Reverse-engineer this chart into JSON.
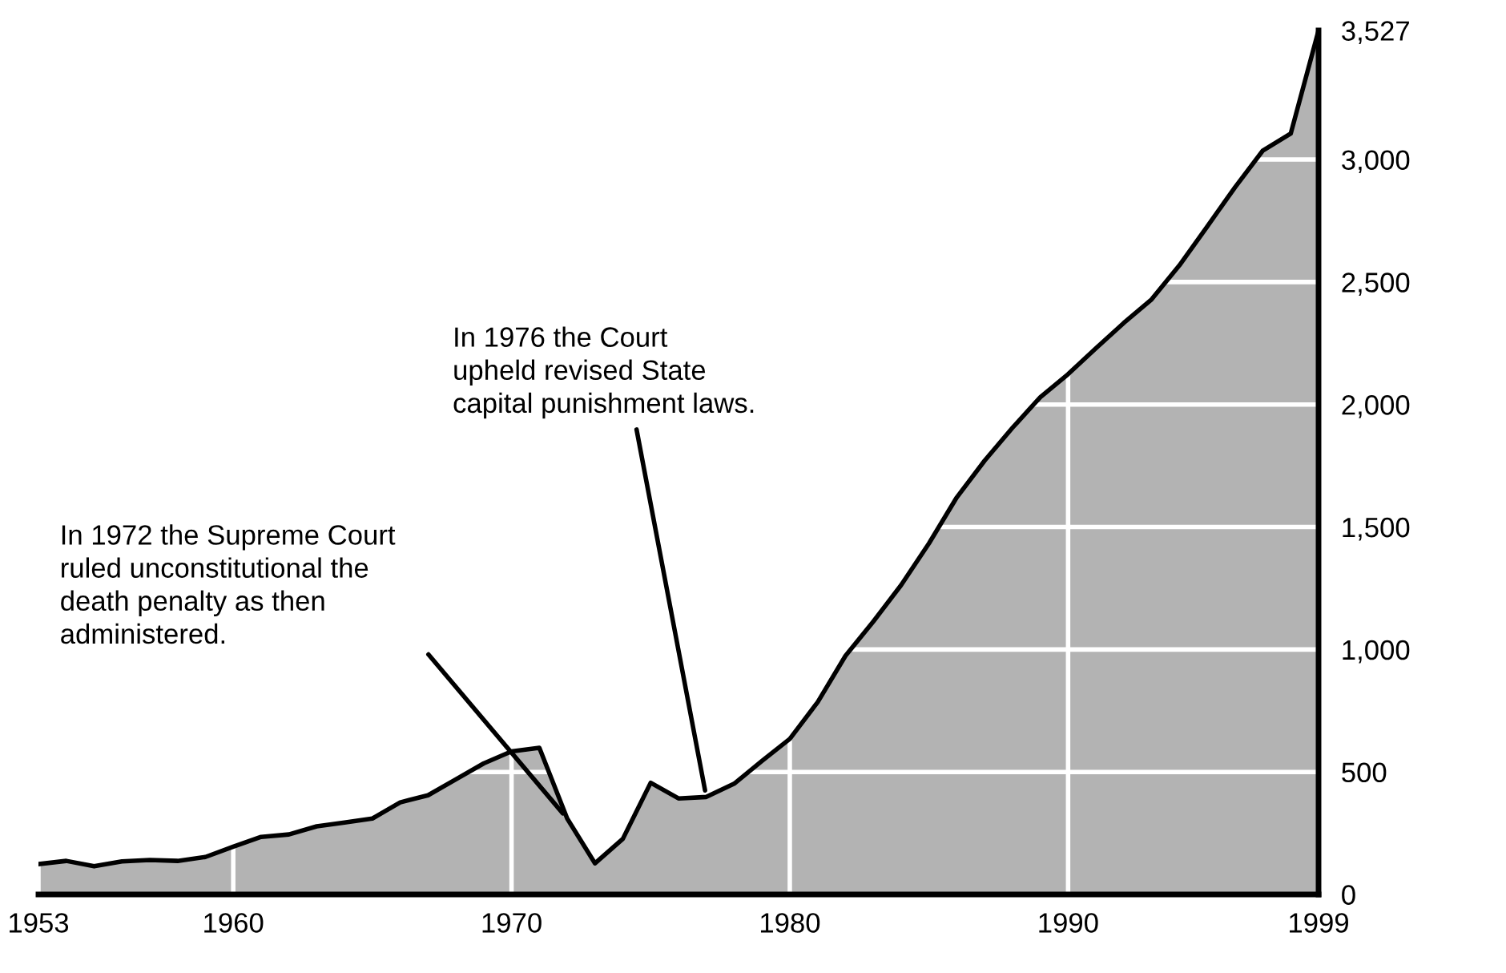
{
  "chart_data": {
    "type": "area",
    "x": [
      1953,
      1954,
      1955,
      1956,
      1957,
      1958,
      1959,
      1960,
      1961,
      1962,
      1963,
      1964,
      1965,
      1966,
      1967,
      1968,
      1969,
      1970,
      1971,
      1972,
      1973,
      1974,
      1975,
      1976,
      1977,
      1978,
      1979,
      1980,
      1981,
      1982,
      1983,
      1984,
      1985,
      1986,
      1987,
      1988,
      1989,
      1990,
      1991,
      1992,
      1993,
      1994,
      1995,
      1996,
      1997,
      1998,
      1999
    ],
    "series": [
      {
        "color": "#b3b3b3",
        "values": [
          124,
          137,
          115,
          135,
          141,
          137,
          153,
          195,
          235,
          245,
          278,
          294,
          310,
          376,
          405,
          470,
          535,
          584,
          599,
          310,
          127,
          227,
          456,
          392,
          398,
          452,
          545,
          635,
          785,
          974,
          1114,
          1263,
          1433,
          1621,
          1771,
          1905,
          2030,
          2124,
          2230,
          2333,
          2429,
          2568,
          2727,
          2887,
          3037,
          3106,
          3527
        ]
      }
    ],
    "xlim": [
      1953,
      1999
    ],
    "xticks": [
      1953,
      1960,
      1970,
      1980,
      1990,
      1999
    ],
    "ylim": [
      0,
      3527
    ],
    "yticks": [
      0,
      500,
      {
        "value": 1000,
        "label": "1,000"
      },
      {
        "value": 1500,
        "label": "1,500"
      },
      {
        "value": 2000,
        "label": "2,000"
      },
      {
        "value": 2500,
        "label": "2,500"
      },
      {
        "value": 3000,
        "label": "3,000"
      },
      {
        "value": 3527,
        "label": "3,527"
      }
    ],
    "grid": true,
    "annotations": [
      {
        "text": "In 1972 the Supreme Court\nruled unconstitutional the\ndeath penalty as then\nadministered.",
        "x": 1972,
        "y": 310
      },
      {
        "text": "In 1976 the Court\nupheld revised State\ncapital punishment laws.",
        "x": 1977,
        "y": 398
      }
    ]
  }
}
